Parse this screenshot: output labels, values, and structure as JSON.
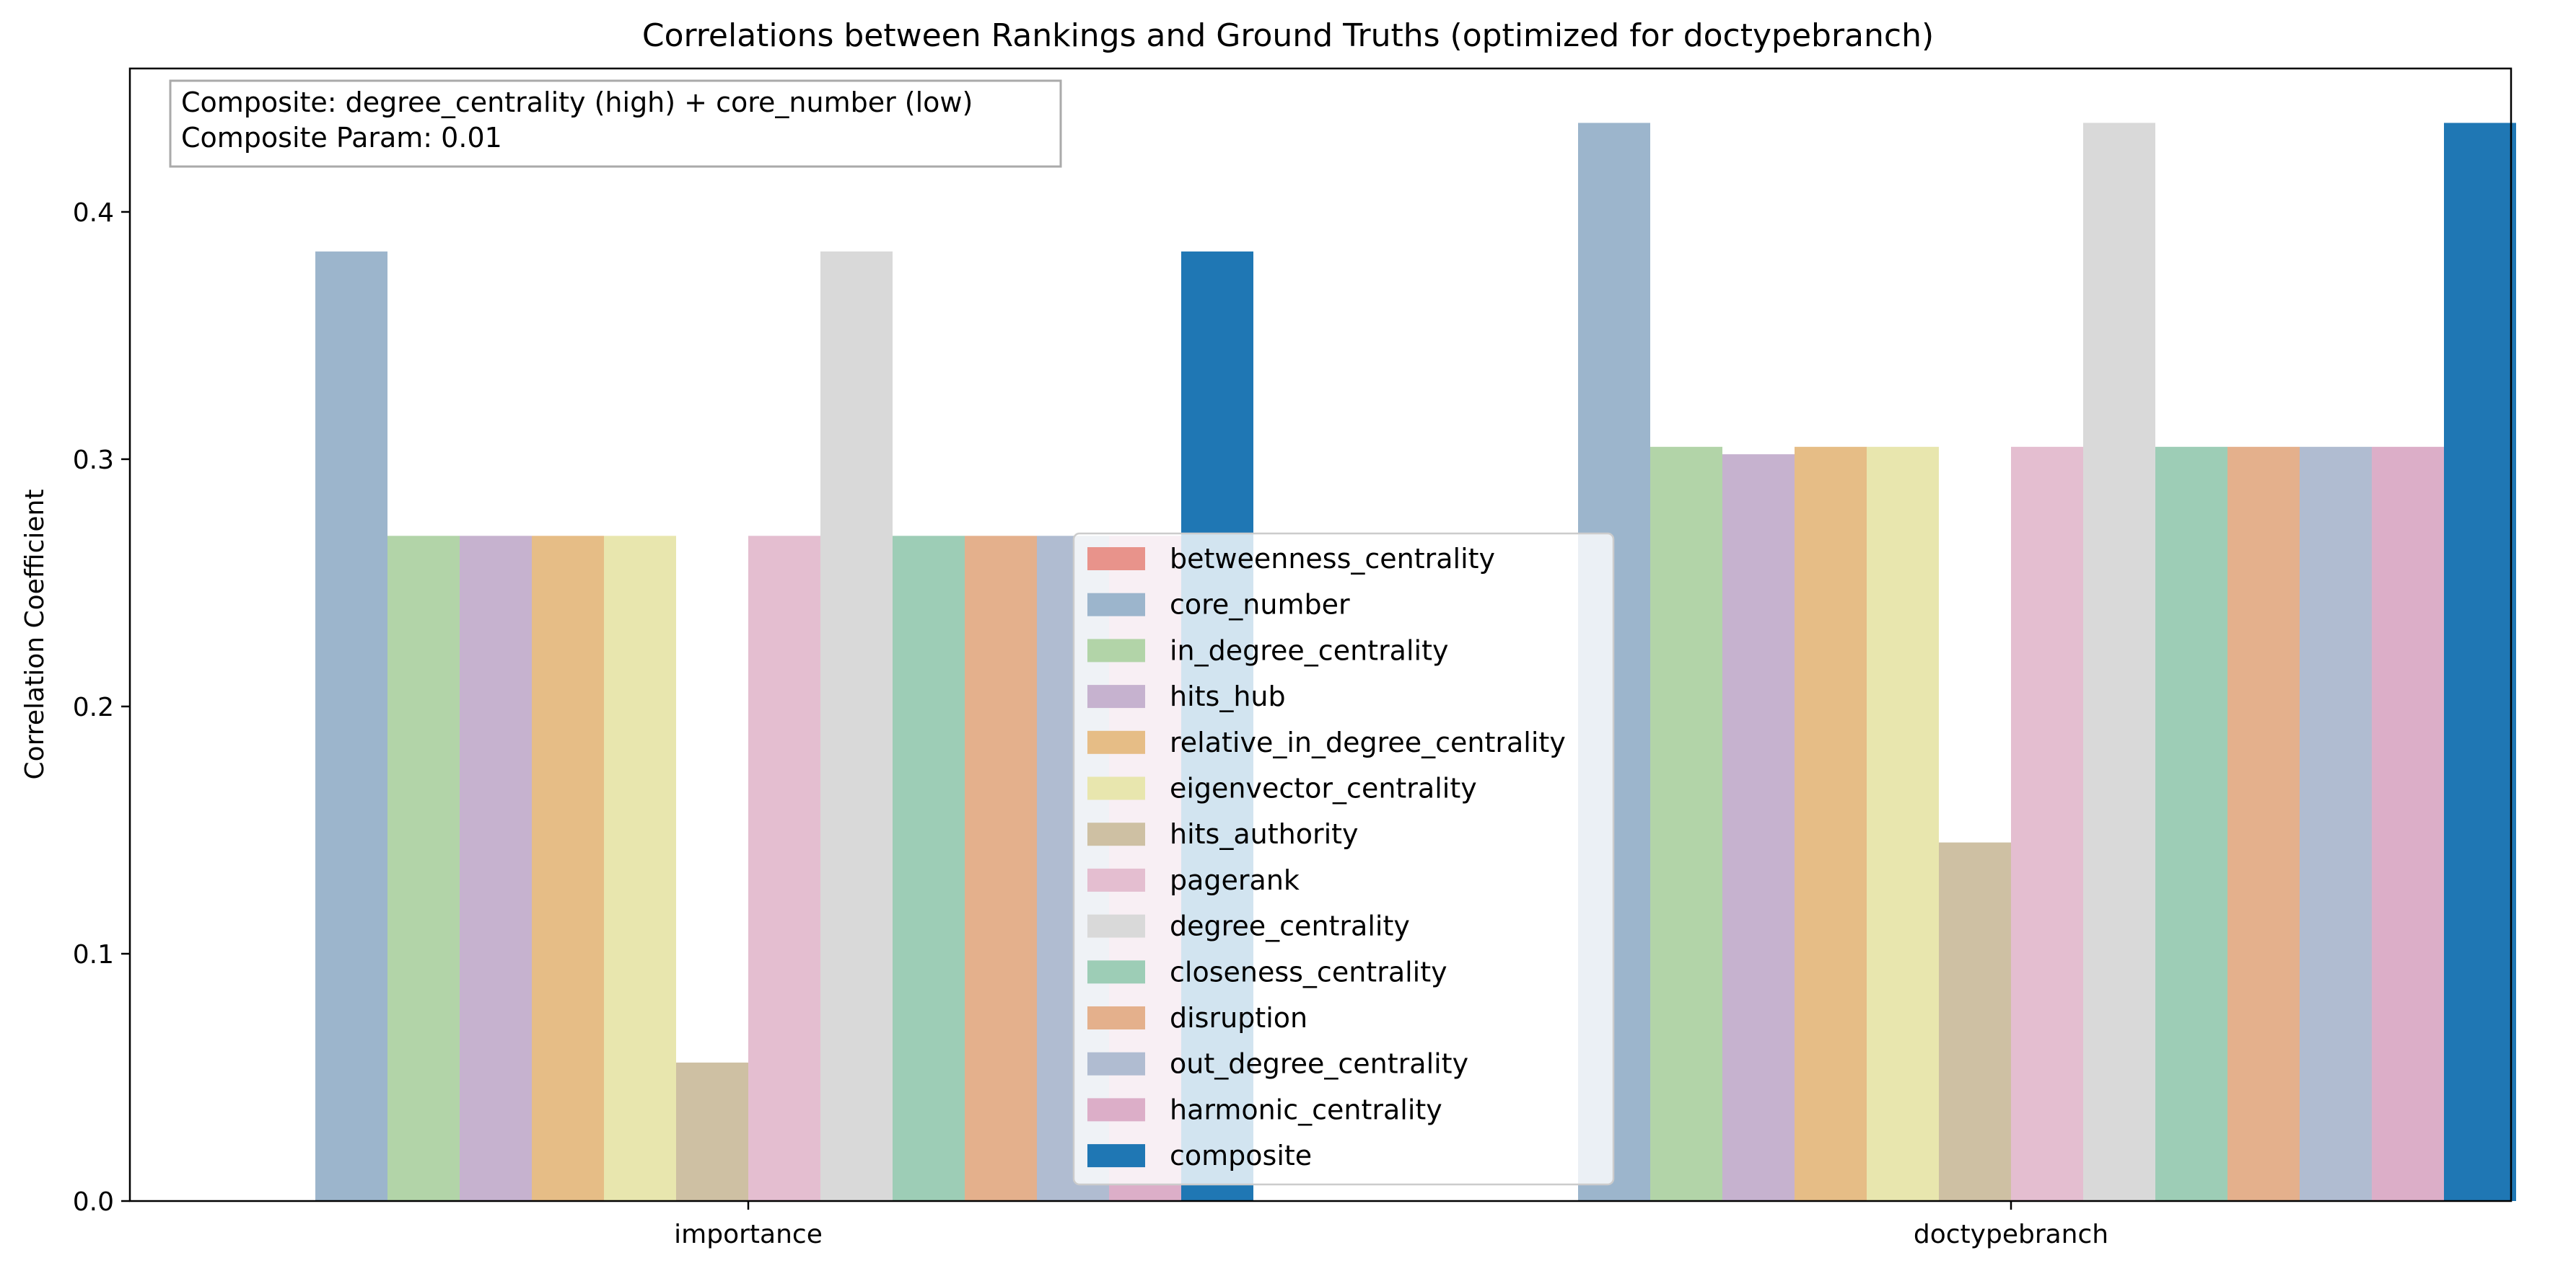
{
  "chart_data": {
    "type": "bar",
    "title": "Correlations between Rankings and Ground Truths (optimized for doctypebranch)",
    "xlabel": "",
    "ylabel": "Correlation Coefficient",
    "ylim": [
      0,
      0.458
    ],
    "yticks": [
      0.0,
      0.1,
      0.2,
      0.3,
      0.4
    ],
    "ytick_labels": [
      "0.0",
      "0.1",
      "0.2",
      "0.3",
      "0.4"
    ],
    "categories": [
      "importance",
      "doctypebranch"
    ],
    "grid": false,
    "legend_position": "center",
    "annotation": [
      "Composite: degree_centrality (high) + core_number (low)",
      "Composite Param: 0.01"
    ],
    "series": [
      {
        "name": "betweenness_centrality",
        "color": "#e8938b",
        "values": [
          0.0,
          0.0
        ]
      },
      {
        "name": "core_number",
        "color": "#9cb5cc",
        "values": [
          0.384,
          0.436
        ]
      },
      {
        "name": "in_degree_centrality",
        "color": "#b2d4a8",
        "values": [
          0.269,
          0.305
        ]
      },
      {
        "name": "hits_hub",
        "color": "#c6b2cf",
        "values": [
          0.269,
          0.302
        ]
      },
      {
        "name": "relative_in_degree_centrality",
        "color": "#e6bd86",
        "values": [
          0.269,
          0.305
        ]
      },
      {
        "name": "eigenvector_centrality",
        "color": "#e8e6ae",
        "values": [
          0.269,
          0.305
        ]
      },
      {
        "name": "hits_authority",
        "color": "#cec0a3",
        "values": [
          0.056,
          0.145
        ]
      },
      {
        "name": "pagerank",
        "color": "#e4bed0",
        "values": [
          0.269,
          0.305
        ]
      },
      {
        "name": "degree_centrality",
        "color": "#d9d9d9",
        "values": [
          0.384,
          0.436
        ]
      },
      {
        "name": "closeness_centrality",
        "color": "#9dcdb6",
        "values": [
          0.269,
          0.305
        ]
      },
      {
        "name": "disruption",
        "color": "#e4b08c",
        "values": [
          0.269,
          0.305
        ]
      },
      {
        "name": "out_degree_centrality",
        "color": "#b0bcd1",
        "values": [
          0.269,
          0.305
        ]
      },
      {
        "name": "harmonic_centrality",
        "color": "#dcaec8",
        "values": [
          0.269,
          0.305
        ]
      },
      {
        "name": "composite",
        "color": "#1f77b4",
        "values": [
          0.384,
          0.436
        ]
      }
    ]
  }
}
